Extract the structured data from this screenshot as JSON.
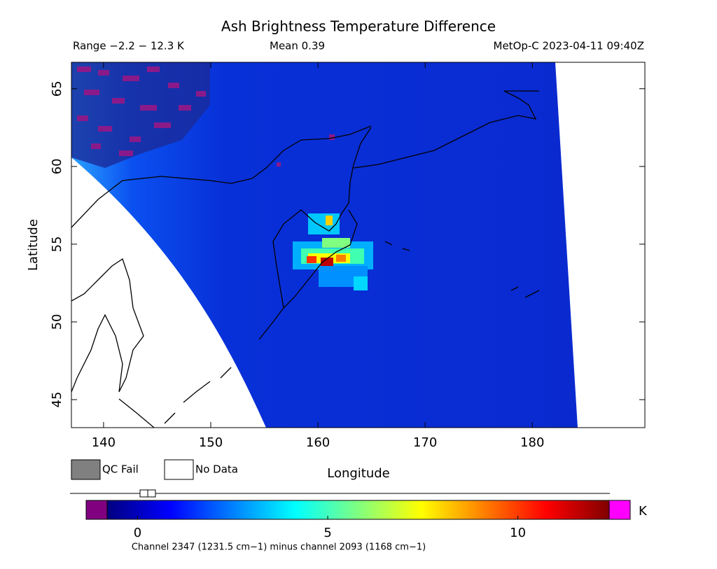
{
  "chart_data": {
    "type": "map",
    "title": "Ash Brightness Temperature Difference",
    "range_label": "Range −2.2 − 12.3 K",
    "mean_label": "Mean 0.39",
    "source_label": "MetOp-C 2023-04-11 09:40Z",
    "xlabel": "Longitude",
    "ylabel": "Latitude",
    "xlim": [
      137.0,
      190.5
    ],
    "ylim": [
      43.2,
      66.7
    ],
    "xticks": [
      140,
      150,
      160,
      170,
      180
    ],
    "yticks": [
      45,
      50,
      55,
      60,
      65
    ],
    "legend": [
      {
        "name": "QC Fail",
        "color": "#808080"
      },
      {
        "name": "No Data",
        "color": "#ffffff"
      }
    ],
    "colorbar": {
      "lim": [
        -0.8,
        12.4
      ],
      "ticks": [
        0,
        5,
        10
      ],
      "unit": "K",
      "colormap": [
        "#000080",
        "#0000ff",
        "#0080ff",
        "#00ffff",
        "#80ff80",
        "#ffff00",
        "#ff8000",
        "#ff0000",
        "#800000"
      ],
      "under_color": "#800080",
      "over_color": "#ff00ff",
      "caption": "Channel 2347 (1231.5 cm−1) minus channel 2093 (1168 cm−1)"
    }
  }
}
